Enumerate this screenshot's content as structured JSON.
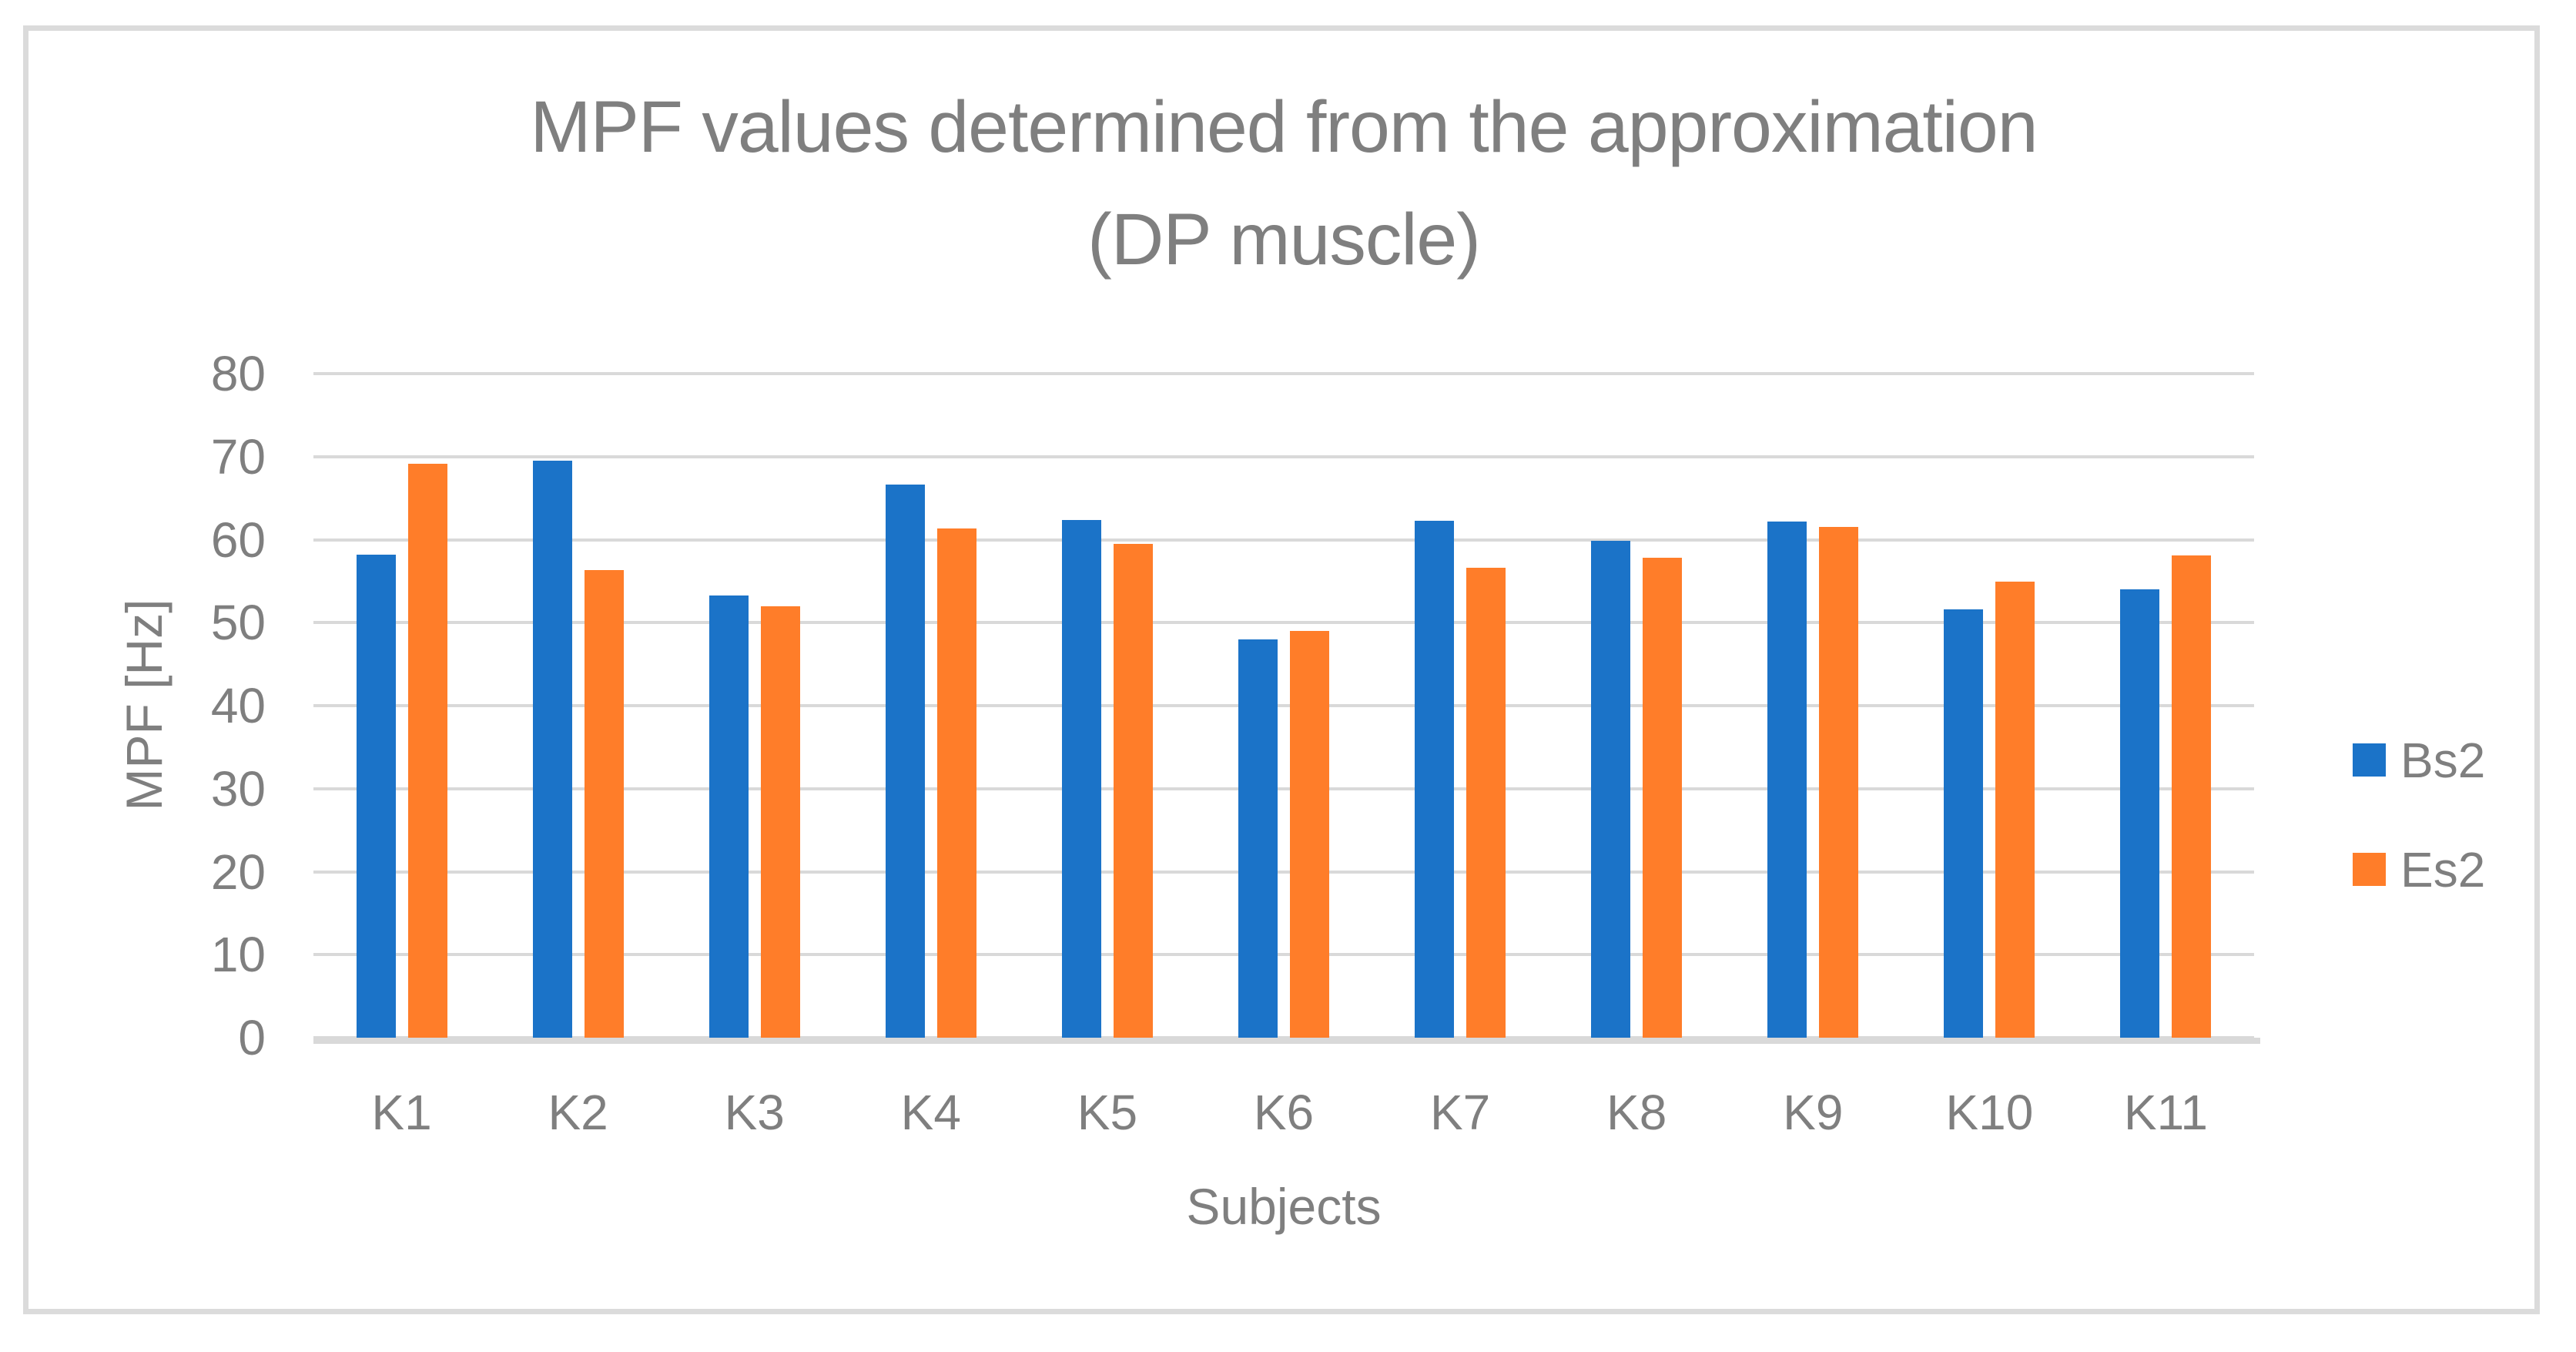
{
  "title": {
    "line1": "MPF values determined from the approximation",
    "line2": "(DP muscle)"
  },
  "axes": {
    "y_label": "MPF [Hz]",
    "x_label": "Subjects",
    "y_ticks": [
      0,
      10,
      20,
      30,
      40,
      50,
      60,
      70,
      80
    ]
  },
  "legend": {
    "items": [
      {
        "label": "Bs2",
        "color": "#1b73c8"
      },
      {
        "label": "Es2",
        "color": "#ff7d29"
      }
    ]
  },
  "colors": {
    "series_blue": "#1b73c8",
    "series_orange": "#ff7d29",
    "text_gray": "#7f7f7f",
    "gridline": "#d9d9d9",
    "frame_border": "#dbdbdb"
  },
  "chart_data": {
    "type": "bar",
    "title": "MPF values determined from the approximation (DP muscle)",
    "categories": [
      "K1",
      "K2",
      "K3",
      "K4",
      "K5",
      "K6",
      "K7",
      "K8",
      "K9",
      "K10",
      "K11"
    ],
    "series": [
      {
        "name": "Bs2",
        "color": "#1b73c8",
        "values": [
          58.2,
          69.5,
          53.3,
          66.6,
          62.4,
          48.0,
          62.3,
          59.9,
          62.2,
          51.6,
          54.0
        ]
      },
      {
        "name": "Es2",
        "color": "#ff7d29",
        "values": [
          69.1,
          56.3,
          52.0,
          61.3,
          59.5,
          49.0,
          56.6,
          57.8,
          61.5,
          54.9,
          58.1
        ]
      }
    ],
    "xlabel": "Subjects",
    "ylabel": "MPF [Hz]",
    "ylim": [
      0,
      80
    ],
    "y_tick_step": 10,
    "grid": true,
    "legend_position": "right"
  }
}
